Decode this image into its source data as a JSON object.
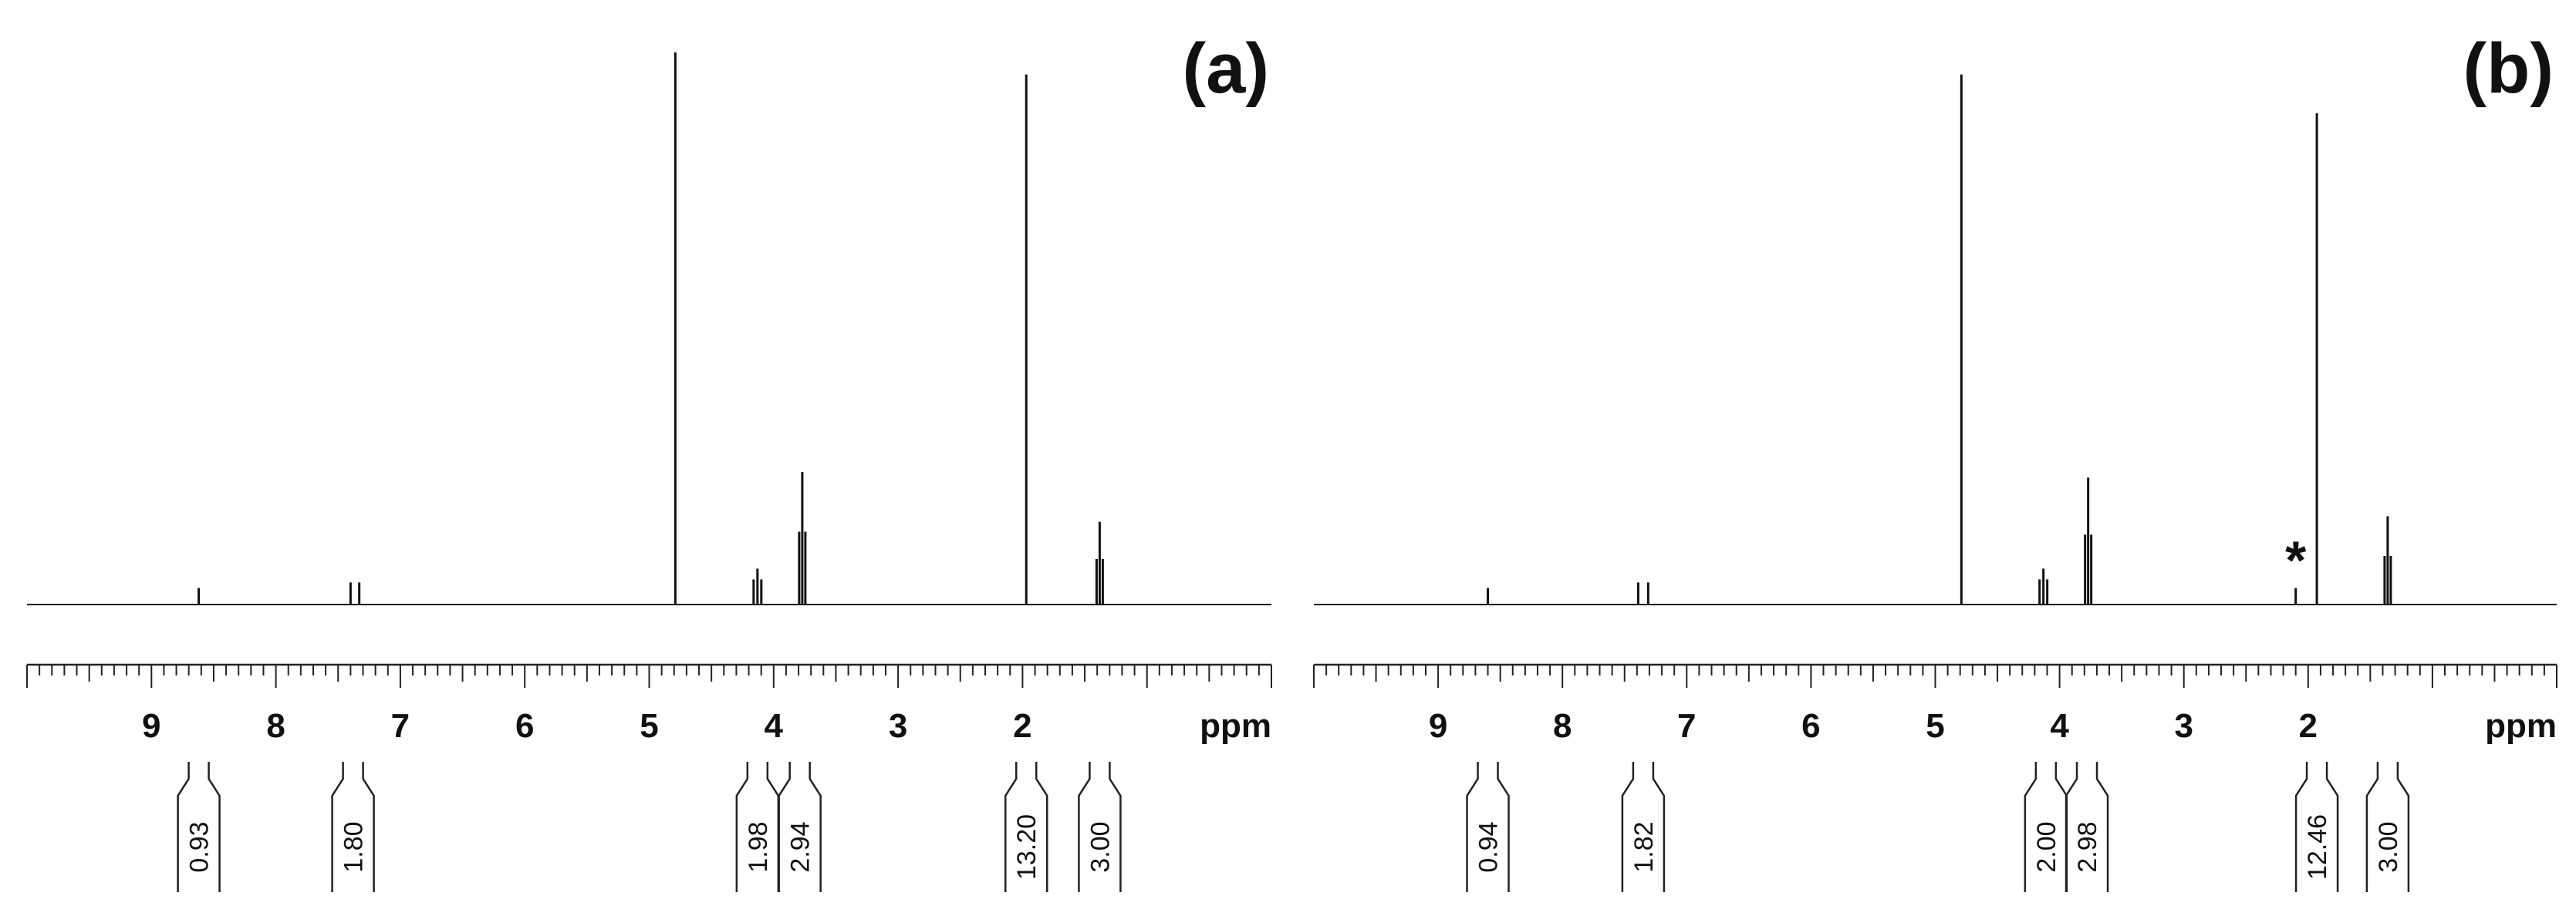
{
  "chart_data": [
    {
      "type": "line",
      "panel_label": "(a)",
      "xlabel": "ppm",
      "x_direction": "reversed",
      "xlim": [
        10.0,
        0.0
      ],
      "ylabel": "",
      "grid": false,
      "major_ticks": [
        9,
        8,
        7,
        6,
        5,
        4,
        3,
        2
      ],
      "tick_labels": [
        "9",
        "8",
        "7",
        "6",
        "5",
        "4",
        "3",
        "2"
      ],
      "series": [
        {
          "peaks": [
            {
              "ppm": 8.62,
              "height": 0.03
            },
            {
              "ppm": 7.4,
              "height": 0.04
            },
            {
              "ppm": 7.33,
              "height": 0.04
            },
            {
              "ppm": 4.79,
              "height": 1.0
            },
            {
              "ppm": 4.13,
              "height": 0.065
            },
            {
              "ppm": 3.77,
              "height": 0.24
            },
            {
              "ppm": 1.97,
              "height": 0.96
            },
            {
              "ppm": 1.38,
              "height": 0.15
            }
          ]
        }
      ],
      "integrals": [
        {
          "ppm": 8.62,
          "value": "0.93"
        },
        {
          "ppm": 7.38,
          "value": "1.80"
        },
        {
          "ppm": 4.13,
          "value": "1.98"
        },
        {
          "ppm": 3.79,
          "value": "2.94"
        },
        {
          "ppm": 1.97,
          "value": "13.20"
        },
        {
          "ppm": 1.38,
          "value": "3.00"
        }
      ],
      "annotations": []
    },
    {
      "type": "line",
      "panel_label": "(b)",
      "xlabel": "ppm",
      "x_direction": "reversed",
      "xlim": [
        10.0,
        0.0
      ],
      "ylabel": "",
      "grid": false,
      "major_ticks": [
        9,
        8,
        7,
        6,
        5,
        4,
        3,
        2
      ],
      "tick_labels": [
        "9",
        "8",
        "7",
        "6",
        "5",
        "4",
        "3",
        "2"
      ],
      "series": [
        {
          "peaks": [
            {
              "ppm": 8.6,
              "height": 0.03
            },
            {
              "ppm": 7.39,
              "height": 0.04
            },
            {
              "ppm": 7.31,
              "height": 0.04
            },
            {
              "ppm": 4.79,
              "height": 0.96
            },
            {
              "ppm": 4.13,
              "height": 0.065
            },
            {
              "ppm": 3.77,
              "height": 0.23
            },
            {
              "ppm": 2.1,
              "height": 0.03
            },
            {
              "ppm": 1.93,
              "height": 0.89
            },
            {
              "ppm": 1.36,
              "height": 0.16
            }
          ]
        }
      ],
      "integrals": [
        {
          "ppm": 8.6,
          "value": "0.94"
        },
        {
          "ppm": 7.35,
          "value": "1.82"
        },
        {
          "ppm": 4.11,
          "value": "2.00"
        },
        {
          "ppm": 3.78,
          "value": "2.98"
        },
        {
          "ppm": 1.93,
          "value": "12.46"
        },
        {
          "ppm": 1.36,
          "value": "3.00"
        }
      ],
      "annotations": [
        {
          "text": "*",
          "ppm": 2.1
        }
      ]
    }
  ]
}
